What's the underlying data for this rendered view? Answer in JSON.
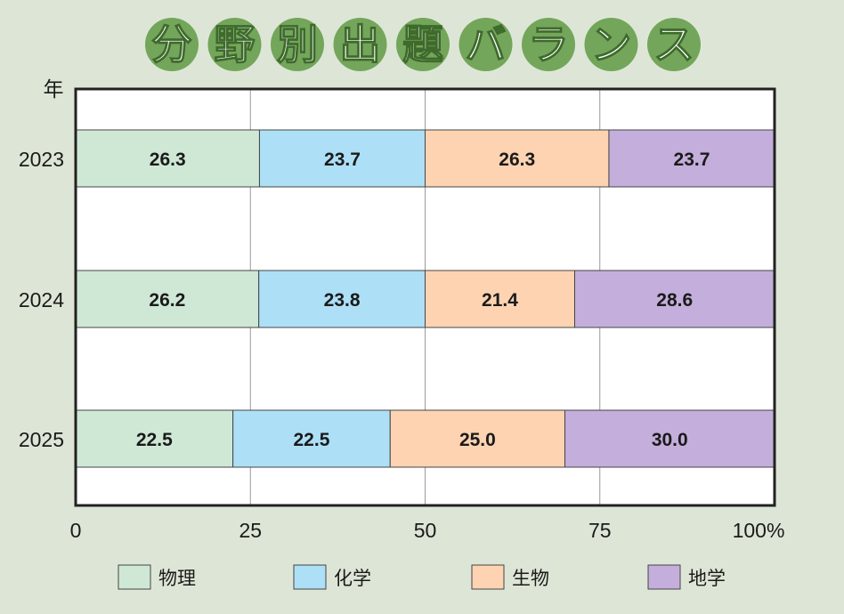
{
  "title": "分野別出題バランス",
  "colors": {
    "title_circle": "#73a65a",
    "物理": "#cfe8d6",
    "化学": "#ade0f7",
    "生物": "#fdd3b2",
    "地学": "#c4aedb"
  },
  "chart_data": {
    "type": "bar",
    "orientation": "horizontal",
    "stacked": true,
    "title": "分野別出題バランス",
    "ylabel": "年",
    "xlabel": "",
    "categories": [
      "2023",
      "2024",
      "2025"
    ],
    "series": [
      {
        "name": "物理",
        "values": [
          26.3,
          26.2,
          22.5
        ]
      },
      {
        "name": "化学",
        "values": [
          23.7,
          23.8,
          22.5
        ]
      },
      {
        "name": "生物",
        "values": [
          26.3,
          21.4,
          25.0
        ]
      },
      {
        "name": "地学",
        "values": [
          23.7,
          28.6,
          30.0
        ]
      }
    ],
    "value_labels": [
      [
        "26.3",
        "23.7",
        "26.3",
        "23.7"
      ],
      [
        "26.2",
        "23.8",
        "21.4",
        "28.6"
      ],
      [
        "22.5",
        "22.5",
        "25.0",
        "30.0"
      ]
    ],
    "xlim": [
      0,
      100
    ],
    "x_ticks": [
      "0",
      "25",
      "50",
      "75",
      "100%"
    ],
    "grid": true,
    "legend_position": "bottom"
  }
}
